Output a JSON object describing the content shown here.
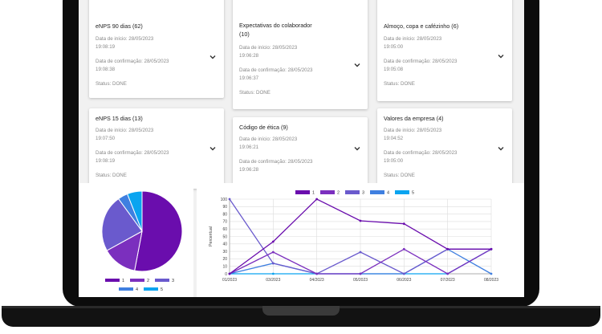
{
  "cards": [
    {
      "title": "eNPS 90 dias (62)",
      "start_label": "Data de início: 28/05/2023",
      "start_time": "19:08:19",
      "confirm_label": "Data de confirmação: 28/05/2023",
      "confirm_time": "19:08:38",
      "status": "Status: DONE"
    },
    {
      "title": "Expectativas do colaborador",
      "title2": "(10)",
      "start_label": "Data de início: 28/05/2023",
      "start_time": "19:06:28",
      "confirm_label": "Data de confirmação: 28/05/2023",
      "confirm_time": "19:06:37",
      "status": "Status: DONE"
    },
    {
      "title": "Almoço, copa e cafézinho (6)",
      "start_label": "Data de início: 28/05/2023",
      "start_time": "19:05:00",
      "confirm_label": "Data de confirmação: 28/05/2023",
      "confirm_time": "19:05:08",
      "status": "Status: DONE"
    },
    {
      "title": "eNPS 15 dias (13)",
      "start_label": "Data de início: 28/05/2023",
      "start_time": "19:07:50",
      "confirm_label": "Data de confirmação: 28/05/2023",
      "confirm_time": "19:08:19",
      "status": "Status: DONE"
    },
    {
      "title": "Código de ética (9)",
      "start_label": "Data de início: 28/05/2023",
      "start_time": "19:06:21",
      "confirm_label": "Data de confirmação: 28/05/2023",
      "confirm_time": "19:06:28",
      "status": ""
    },
    {
      "title": "Valores da empresa (4)",
      "start_label": "Data de início: 28/05/2023",
      "start_time": "19:04:52",
      "confirm_label": "Data de confirmação: 28/05/2023",
      "confirm_time": "19:05:00",
      "status": "Status: DONE"
    }
  ],
  "colors": {
    "s1": "#6a0dad",
    "s2": "#7b2fbe",
    "s3": "#6a5acd",
    "s4": "#3f7fe0",
    "s5": "#0aa4f0"
  },
  "chart_data": [
    {
      "type": "pie",
      "labels": [
        "1",
        "2",
        "3",
        "4",
        "5"
      ],
      "values": [
        53,
        14,
        23,
        4,
        6
      ],
      "legend": [
        "1",
        "2",
        "3",
        "4",
        "5"
      ]
    },
    {
      "type": "line",
      "ylabel": "Percentual",
      "ylim": [
        0,
        100
      ],
      "yticks": [
        "0",
        "10",
        "20",
        "30",
        "40",
        "50",
        "60",
        "70",
        "80",
        "90",
        "100"
      ],
      "categories": [
        "01/2023",
        "03/2023",
        "04/2023",
        "05/2023",
        "06/2023",
        "07/2023",
        "08/2023"
      ],
      "series": [
        {
          "name": "1",
          "values": [
            0,
            43,
            100,
            71,
            67,
            33,
            33
          ]
        },
        {
          "name": "2",
          "values": [
            0,
            29,
            0,
            0,
            33,
            0,
            33
          ]
        },
        {
          "name": "3",
          "values": [
            100,
            14,
            0,
            29,
            0,
            33,
            33
          ]
        },
        {
          "name": "4",
          "values": [
            0,
            14,
            0,
            0,
            0,
            33,
            0
          ]
        },
        {
          "name": "5",
          "values": [
            0,
            0,
            0,
            0,
            0,
            0,
            33
          ]
        }
      ],
      "legend_position": "top",
      "grid": true
    }
  ]
}
